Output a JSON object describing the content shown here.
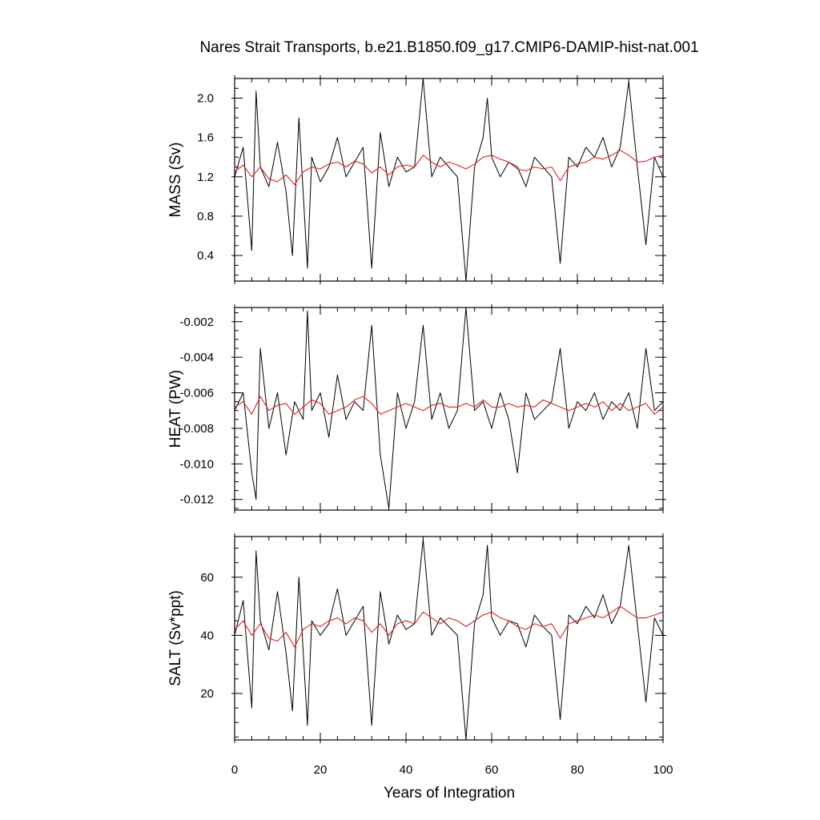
{
  "chart_data": {
    "title": "Nares Strait Transports, b.e21.B1850.f09_g17.CMIP6-DAMIP-hist-nat.001",
    "xlabel": "Years of Integration",
    "xlim": [
      0,
      100
    ],
    "xticks": [
      0,
      20,
      40,
      60,
      80,
      100
    ],
    "xtick_labels": [
      "0",
      "20",
      "40",
      "60",
      "80",
      "100"
    ],
    "grid": false,
    "legend": "none",
    "panels": [
      {
        "type": "line",
        "ylabel": "MASS (Sv)",
        "ylim": [
          0.14,
          2.2
        ],
        "yticks": [
          0.4,
          0.8,
          1.2,
          1.6,
          2.0
        ],
        "ytick_labels": [
          "0.4",
          "0.8",
          "1.2",
          "1.6",
          "2.0"
        ],
        "series": [
          {
            "color": "#000000",
            "x": [
              0,
              2,
              4,
              5,
              6,
              8,
              10,
              12,
              13.5,
              15,
              17,
              18,
              20,
              22,
              24,
              26,
              28,
              30,
              32,
              34,
              36,
              38,
              40,
              42,
              44,
              46,
              48,
              50,
              52,
              54,
              56,
              58,
              59,
              60,
              62,
              64,
              66,
              68,
              70,
              72,
              74,
              76,
              78,
              80,
              82,
              84,
              86,
              88,
              90,
              92,
              94,
              96,
              98,
              100
            ],
            "values": [
              1.2,
              1.5,
              0.45,
              2.07,
              1.3,
              1.1,
              1.55,
              1.05,
              0.4,
              1.8,
              0.27,
              1.4,
              1.15,
              1.3,
              1.6,
              1.2,
              1.35,
              1.5,
              0.27,
              1.65,
              1.1,
              1.4,
              1.25,
              1.3,
              2.2,
              1.2,
              1.4,
              1.3,
              1.2,
              0.14,
              1.3,
              1.6,
              2.0,
              1.4,
              1.2,
              1.35,
              1.3,
              1.1,
              1.4,
              1.3,
              1.2,
              0.32,
              1.4,
              1.3,
              1.5,
              1.4,
              1.6,
              1.3,
              1.5,
              2.17,
              1.3,
              0.51,
              1.4,
              1.2
            ]
          },
          {
            "color": "#e02020",
            "x": [
              0,
              2,
              4,
              6,
              8,
              10,
              12,
              14,
              16,
              18,
              20,
              22,
              24,
              26,
              28,
              30,
              32,
              34,
              36,
              38,
              40,
              42,
              44,
              46,
              48,
              50,
              52,
              54,
              56,
              58,
              60,
              62,
              64,
              66,
              68,
              70,
              72,
              74,
              76,
              78,
              80,
              82,
              84,
              86,
              88,
              90,
              92,
              94,
              96,
              98,
              100
            ],
            "values": [
              1.25,
              1.32,
              1.2,
              1.3,
              1.18,
              1.15,
              1.22,
              1.12,
              1.25,
              1.3,
              1.28,
              1.33,
              1.35,
              1.3,
              1.36,
              1.33,
              1.24,
              1.3,
              1.22,
              1.3,
              1.32,
              1.3,
              1.42,
              1.35,
              1.3,
              1.35,
              1.32,
              1.28,
              1.33,
              1.4,
              1.42,
              1.38,
              1.35,
              1.28,
              1.26,
              1.3,
              1.28,
              1.3,
              1.16,
              1.3,
              1.33,
              1.35,
              1.4,
              1.38,
              1.42,
              1.47,
              1.42,
              1.35,
              1.36,
              1.4,
              1.42
            ]
          }
        ]
      },
      {
        "type": "line",
        "ylabel": "HEAT (PW)",
        "ylim": [
          -0.0126,
          -0.0012
        ],
        "yticks": [
          -0.012,
          -0.01,
          -0.008,
          -0.006,
          -0.004,
          -0.002
        ],
        "ytick_labels": [
          "-0.012",
          "-0.010",
          "-0.008",
          "-0.006",
          "-0.004",
          "-0.002"
        ],
        "series": [
          {
            "color": "#000000",
            "x": [
              0,
              2,
              4,
              5,
              6,
              8,
              10,
              12,
              14,
              16,
              17,
              18,
              20,
              22,
              24,
              26,
              28,
              30,
              32,
              34,
              36,
              38,
              40,
              42,
              44,
              46,
              48,
              50,
              52,
              54,
              56,
              58,
              60,
              62,
              64,
              66,
              68,
              70,
              72,
              74,
              76,
              78,
              80,
              82,
              84,
              86,
              88,
              90,
              92,
              94,
              96,
              98,
              100
            ],
            "values": [
              -0.007,
              -0.006,
              -0.0105,
              -0.012,
              -0.0035,
              -0.008,
              -0.006,
              -0.0095,
              -0.0065,
              -0.0075,
              -0.0014,
              -0.007,
              -0.006,
              -0.0085,
              -0.005,
              -0.0075,
              -0.0065,
              -0.007,
              -0.0022,
              -0.0095,
              -0.0125,
              -0.006,
              -0.008,
              -0.0065,
              -0.0022,
              -0.0075,
              -0.006,
              -0.008,
              -0.007,
              -0.0012,
              -0.007,
              -0.0065,
              -0.008,
              -0.006,
              -0.0075,
              -0.0105,
              -0.006,
              -0.0075,
              -0.007,
              -0.0065,
              -0.0035,
              -0.008,
              -0.0065,
              -0.007,
              -0.006,
              -0.0075,
              -0.0065,
              -0.007,
              -0.006,
              -0.008,
              -0.0035,
              -0.007,
              -0.0065
            ]
          },
          {
            "color": "#e02020",
            "x": [
              0,
              2,
              4,
              6,
              8,
              10,
              12,
              14,
              16,
              18,
              20,
              22,
              24,
              26,
              28,
              30,
              32,
              34,
              36,
              38,
              40,
              42,
              44,
              46,
              48,
              50,
              52,
              54,
              56,
              58,
              60,
              62,
              64,
              66,
              68,
              70,
              72,
              74,
              76,
              78,
              80,
              82,
              84,
              86,
              88,
              90,
              92,
              94,
              96,
              98,
              100
            ],
            "values": [
              -0.0068,
              -0.0065,
              -0.0072,
              -0.0062,
              -0.007,
              -0.0067,
              -0.0066,
              -0.0072,
              -0.0068,
              -0.0064,
              -0.0066,
              -0.0072,
              -0.007,
              -0.0068,
              -0.0064,
              -0.0062,
              -0.0066,
              -0.0072,
              -0.007,
              -0.0068,
              -0.0066,
              -0.0068,
              -0.007,
              -0.0067,
              -0.0066,
              -0.0068,
              -0.0068,
              -0.0066,
              -0.0068,
              -0.0064,
              -0.0068,
              -0.0068,
              -0.0066,
              -0.0068,
              -0.0067,
              -0.0068,
              -0.0064,
              -0.0066,
              -0.0068,
              -0.007,
              -0.0068,
              -0.0066,
              -0.0068,
              -0.0065,
              -0.007,
              -0.0066,
              -0.007,
              -0.0068,
              -0.0066,
              -0.0072,
              -0.0068
            ]
          }
        ]
      },
      {
        "type": "line",
        "ylabel": "SALT (Sv*ppt)",
        "ylim": [
          4,
          74
        ],
        "yticks": [
          20,
          40,
          60
        ],
        "ytick_labels": [
          "20",
          "40",
          "60"
        ],
        "series": [
          {
            "color": "#000000",
            "x": [
              0,
              2,
              4,
              5,
              6,
              8,
              10,
              12,
              13.5,
              15,
              17,
              18,
              20,
              22,
              24,
              26,
              28,
              30,
              32,
              34,
              36,
              38,
              40,
              42,
              44,
              46,
              48,
              50,
              52,
              54,
              56,
              58,
              59,
              60,
              62,
              64,
              66,
              68,
              70,
              72,
              74,
              76,
              78,
              80,
              82,
              84,
              86,
              88,
              90,
              92,
              94,
              96,
              98,
              100
            ],
            "values": [
              40,
              52,
              15,
              69,
              45,
              35,
              55,
              34,
              14,
              60,
              9,
              45,
              40,
              44,
              56,
              40,
              45,
              50,
              9,
              55,
              37,
              47,
              42,
              44,
              73,
              40,
              46,
              43,
              40,
              4,
              44,
              54,
              71,
              46,
              40,
              45,
              44,
              36,
              47,
              43,
              40,
              11,
              47,
              44,
              50,
              46,
              54,
              44,
              50,
              71,
              44,
              17,
              46,
              40
            ]
          },
          {
            "color": "#e02020",
            "x": [
              0,
              2,
              4,
              6,
              8,
              10,
              12,
              14,
              16,
              18,
              20,
              22,
              24,
              26,
              28,
              30,
              32,
              34,
              36,
              38,
              40,
              42,
              44,
              46,
              48,
              50,
              52,
              54,
              56,
              58,
              60,
              62,
              64,
              66,
              68,
              70,
              72,
              74,
              76,
              78,
              80,
              82,
              84,
              86,
              88,
              90,
              92,
              94,
              96,
              98,
              100
            ],
            "values": [
              42,
              45,
              40,
              44,
              39,
              38,
              41,
              36,
              42,
              44,
              43,
              45,
              46,
              44,
              46,
              45,
              41,
              44,
              40,
              44,
              45,
              44,
              48,
              46,
              44,
              46,
              45,
              43,
              45,
              47,
              48,
              46,
              45,
              43,
              42,
              44,
              43,
              44,
              39,
              44,
              45,
              46,
              47,
              46,
              48,
              50,
              48,
              46,
              46,
              47,
              48
            ]
          }
        ]
      }
    ]
  }
}
